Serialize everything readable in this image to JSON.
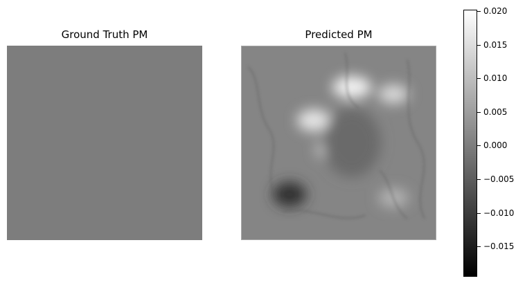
{
  "chart_data": [
    {
      "type": "heatmap",
      "title": "Ground Truth PM",
      "colormap": "gray",
      "uniform_value": 0.0
    },
    {
      "type": "heatmap",
      "title": "Predicted PM",
      "colormap": "gray",
      "regions": [
        {
          "area": "upper-center",
          "value": 0.018
        },
        {
          "area": "upper-right",
          "value": 0.014
        },
        {
          "area": "center-left",
          "value": 0.016
        },
        {
          "area": "lower-center-left",
          "value": 0.012
        },
        {
          "area": "lower-right",
          "value": 0.008
        },
        {
          "area": "center",
          "value": -0.003
        },
        {
          "area": "lower-left",
          "value": -0.012
        }
      ]
    }
  ],
  "colorbar": {
    "vmin": -0.0195,
    "vmax": 0.0202,
    "ticks": [
      0.02,
      0.015,
      0.01,
      0.005,
      0.0,
      -0.005,
      -0.01,
      -0.015
    ],
    "tick_labels": [
      "0.020",
      "0.015",
      "0.010",
      "0.005",
      "0.000",
      "−0.005",
      "−0.010",
      "−0.015"
    ]
  }
}
